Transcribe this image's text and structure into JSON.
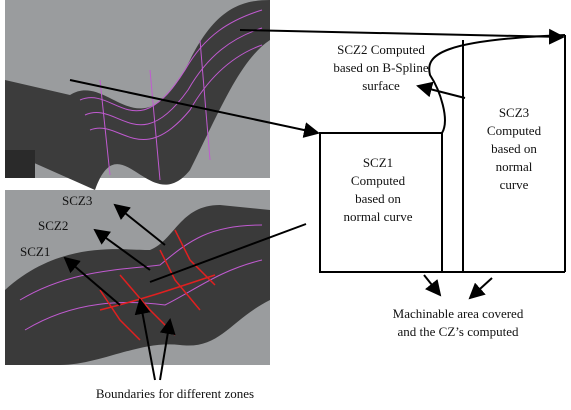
{
  "labels": {
    "scz2_right": [
      "SCZ2 Computed",
      "based on B-Spline",
      "surface"
    ],
    "scz1_right": [
      "SCZ1",
      "Computed",
      "based on",
      "normal curve"
    ],
    "scz3_right": [
      "SCZ3",
      "Computed",
      "based on",
      "normal",
      "curve"
    ],
    "image_zones": [
      "SCZ3",
      "SCZ2",
      "SCZ1"
    ],
    "machinable": [
      "Machinable area covered",
      "and the CZ’s computed"
    ],
    "boundaries": "Boundaries for different zones"
  }
}
